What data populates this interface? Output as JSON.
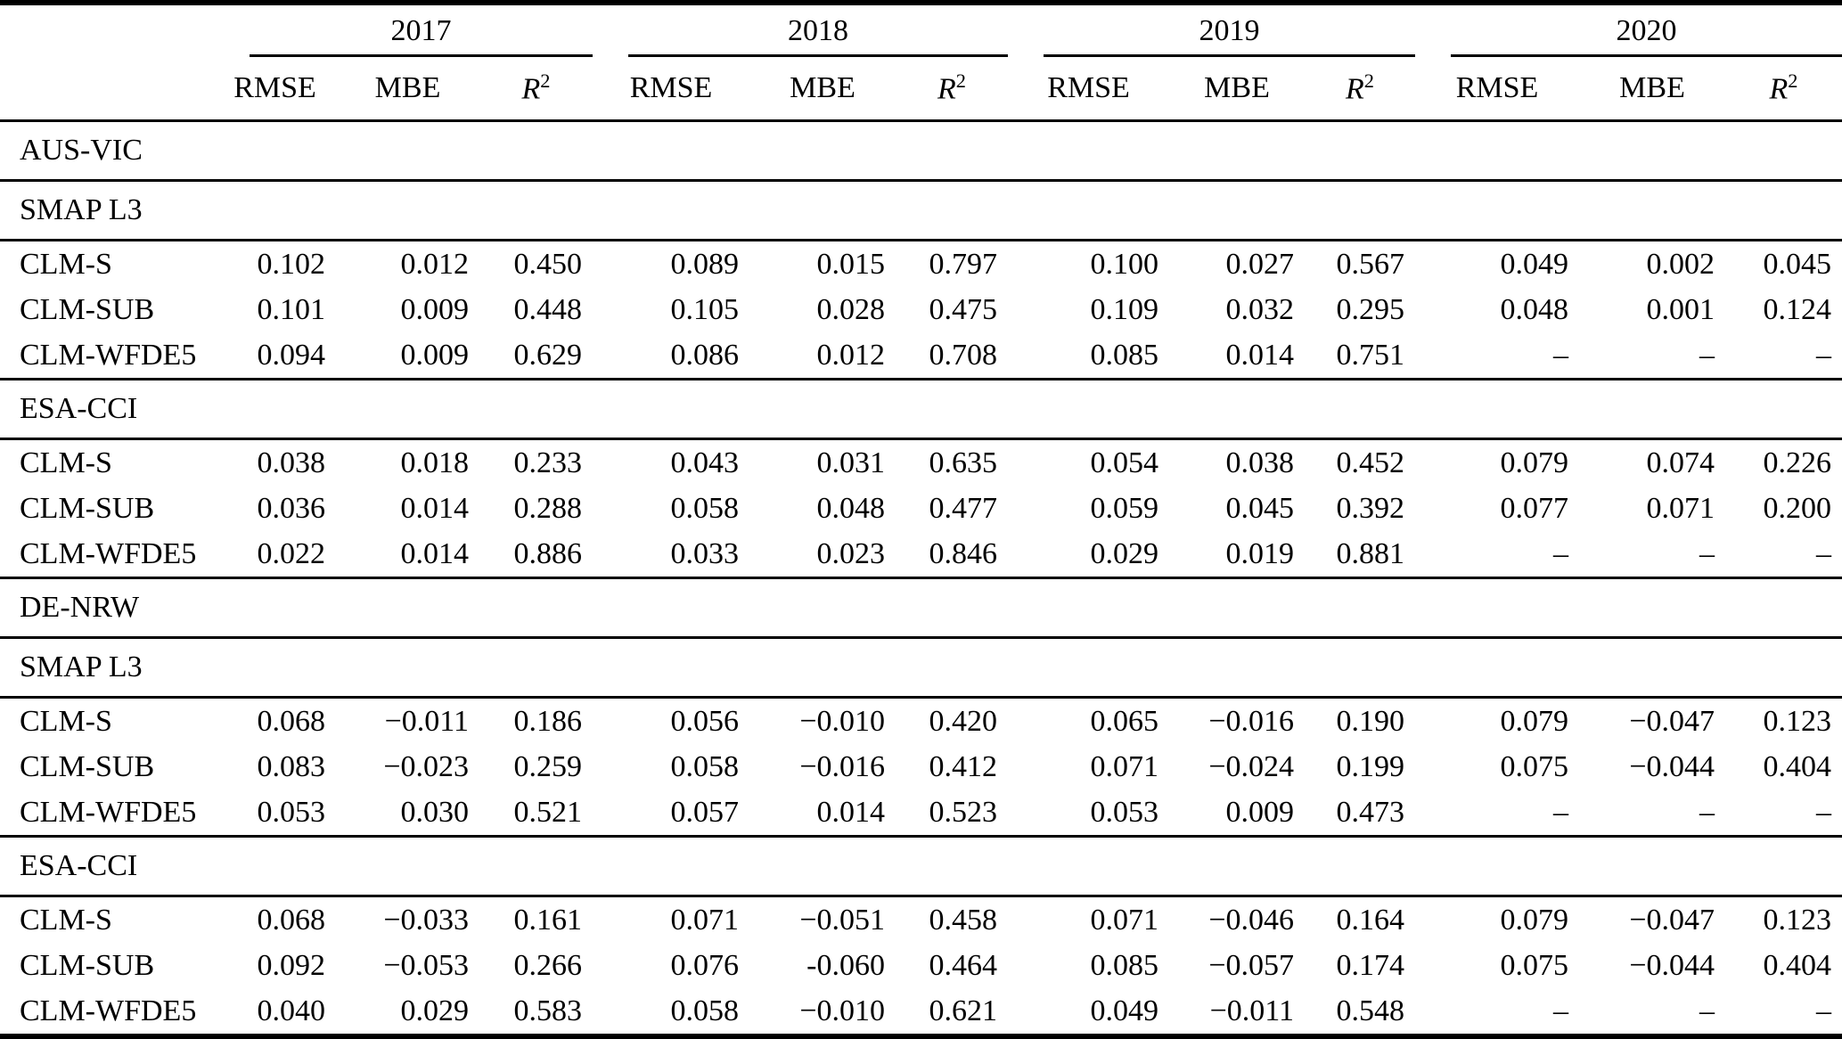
{
  "colors": {
    "text": "#000000",
    "background": "#ffffff",
    "rule": "#000000"
  },
  "table": {
    "years": [
      "2017",
      "2018",
      "2019",
      "2020"
    ],
    "metric_rmse": "RMSE",
    "metric_mbe": "MBE",
    "metric_r2": {
      "base": "R",
      "sup": "2"
    },
    "placeholder_dash": "–",
    "sections": [
      {
        "region": "AUS-VIC",
        "products": [
          {
            "name": "SMAP L3",
            "rows": [
              {
                "label": "CLM-S",
                "values": [
                  "0.102",
                  "0.012",
                  "0.450",
                  "0.089",
                  "0.015",
                  "0.797",
                  "0.100",
                  "0.027",
                  "0.567",
                  "0.049",
                  "0.002",
                  "0.045"
                ]
              },
              {
                "label": "CLM-SUB",
                "values": [
                  "0.101",
                  "0.009",
                  "0.448",
                  "0.105",
                  "0.028",
                  "0.475",
                  "0.109",
                  "0.032",
                  "0.295",
                  "0.048",
                  "0.001",
                  "0.124"
                ]
              },
              {
                "label": "CLM-WFDE5",
                "values": [
                  "0.094",
                  "0.009",
                  "0.629",
                  "0.086",
                  "0.012",
                  "0.708",
                  "0.085",
                  "0.014",
                  "0.751",
                  "–",
                  "–",
                  "–"
                ]
              }
            ]
          },
          {
            "name": "ESA-CCI",
            "rows": [
              {
                "label": "CLM-S",
                "values": [
                  "0.038",
                  "0.018",
                  "0.233",
                  "0.043",
                  "0.031",
                  "0.635",
                  "0.054",
                  "0.038",
                  "0.452",
                  "0.079",
                  "0.074",
                  "0.226"
                ]
              },
              {
                "label": "CLM-SUB",
                "values": [
                  "0.036",
                  "0.014",
                  "0.288",
                  "0.058",
                  "0.048",
                  "0.477",
                  "0.059",
                  "0.045",
                  "0.392",
                  "0.077",
                  "0.071",
                  "0.200"
                ]
              },
              {
                "label": "CLM-WFDE5",
                "values": [
                  "0.022",
                  "0.014",
                  "0.886",
                  "0.033",
                  "0.023",
                  "0.846",
                  "0.029",
                  "0.019",
                  "0.881",
                  "–",
                  "–",
                  "–"
                ]
              }
            ]
          }
        ]
      },
      {
        "region": "DE-NRW",
        "products": [
          {
            "name": "SMAP L3",
            "rows": [
              {
                "label": "CLM-S",
                "values": [
                  "0.068",
                  "−0.011",
                  "0.186",
                  "0.056",
                  "−0.010",
                  "0.420",
                  "0.065",
                  "−0.016",
                  "0.190",
                  "0.079",
                  "−0.047",
                  "0.123"
                ]
              },
              {
                "label": "CLM-SUB",
                "values": [
                  "0.083",
                  "−0.023",
                  "0.259",
                  "0.058",
                  "−0.016",
                  "0.412",
                  "0.071",
                  "−0.024",
                  "0.199",
                  "0.075",
                  "−0.044",
                  "0.404"
                ]
              },
              {
                "label": "CLM-WFDE5",
                "values": [
                  "0.053",
                  "0.030",
                  "0.521",
                  "0.057",
                  "0.014",
                  "0.523",
                  "0.053",
                  "0.009",
                  "0.473",
                  "–",
                  "–",
                  "–"
                ]
              }
            ]
          },
          {
            "name": "ESA-CCI",
            "rows": [
              {
                "label": "CLM-S",
                "values": [
                  "0.068",
                  "−0.033",
                  "0.161",
                  "0.071",
                  "−0.051",
                  "0.458",
                  "0.071",
                  "−0.046",
                  "0.164",
                  "0.079",
                  "−0.047",
                  "0.123"
                ]
              },
              {
                "label": "CLM-SUB",
                "values": [
                  "0.092",
                  "−0.053",
                  "0.266",
                  "0.076",
                  "-0.060",
                  "0.464",
                  "0.085",
                  "−0.057",
                  "0.174",
                  "0.075",
                  "−0.044",
                  "0.404"
                ]
              },
              {
                "label": "CLM-WFDE5",
                "values": [
                  "0.040",
                  "0.029",
                  "0.583",
                  "0.058",
                  "−0.010",
                  "0.621",
                  "0.049",
                  "−0.011",
                  "0.548",
                  "–",
                  "–",
                  "–"
                ]
              }
            ]
          }
        ]
      }
    ]
  }
}
